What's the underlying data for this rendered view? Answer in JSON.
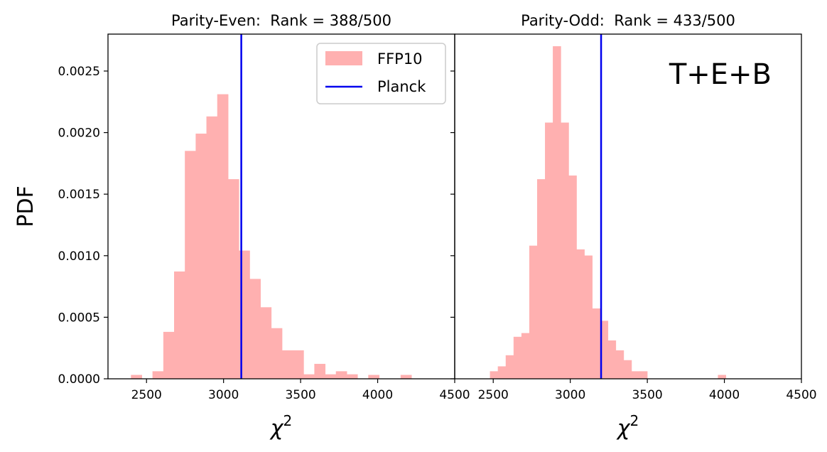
{
  "chart_data": [
    {
      "type": "bar",
      "subtype": "histogram",
      "title": "Parity-Even:  Rank = 388/500",
      "xlabel": "χ",
      "xlabel_sup": "2",
      "ylabel": "PDF",
      "xlim": [
        2250,
        4500
      ],
      "ylim": [
        0,
        0.0028
      ],
      "xticks": [
        2500,
        3000,
        3500,
        4000,
        4500
      ],
      "xtick_labels": [
        "2500",
        "3000",
        "3500",
        "4000",
        "4500"
      ],
      "yticks": [
        0,
        0.0005,
        0.001,
        0.0015,
        0.002,
        0.0025
      ],
      "ytick_labels": [
        "0.0000",
        "0.0005",
        "0.0010",
        "0.0015",
        "0.0020",
        "0.0025"
      ],
      "series": [
        {
          "name": "FFP10",
          "color": "#ffb0b0",
          "bin_start": 2400,
          "bin_width": 70,
          "values": [
            3e-05,
            0,
            6e-05,
            0.00038,
            0.00087,
            0.00185,
            0.00199,
            0.00213,
            0.00231,
            0.00162,
            0.00104,
            0.00081,
            0.00058,
            0.00041,
            0.00023,
            0.00023,
            3.5e-05,
            0.00012,
            3.5e-05,
            6e-05,
            3.5e-05,
            0,
            3e-05,
            0,
            0,
            3e-05
          ]
        }
      ],
      "vlines": [
        {
          "name": "Planck",
          "x": 3115,
          "color": "#0000ee"
        }
      ],
      "legend": {
        "position": "top-right",
        "entries": [
          "FFP10",
          "Planck"
        ]
      }
    },
    {
      "type": "bar",
      "subtype": "histogram",
      "title": "Parity-Odd:  Rank = 433/500",
      "xlabel": "χ",
      "xlabel_sup": "2",
      "xlim": [
        2250,
        4500
      ],
      "ylim": [
        0,
        0.0028
      ],
      "xticks": [
        2500,
        3000,
        3500,
        4000,
        4500
      ],
      "xtick_labels": [
        "2500",
        "3000",
        "3500",
        "4000",
        "4500"
      ],
      "annotation": {
        "text": "T+E+B",
        "color": "#008000",
        "position": "top-right"
      },
      "series": [
        {
          "name": "FFP10",
          "color": "#ffb0b0",
          "bin_start": 2480,
          "bin_width": 51,
          "values": [
            6e-05,
            0.0001,
            0.00019,
            0.00034,
            0.00037,
            0.00108,
            0.00162,
            0.00208,
            0.0027,
            0.00208,
            0.00165,
            0.00105,
            0.001,
            0.00057,
            0.00047,
            0.00031,
            0.00023,
            0.00015,
            6e-05,
            6e-05,
            0,
            0,
            0,
            0,
            0,
            0,
            0,
            0,
            0,
            3e-05
          ]
        }
      ],
      "vlines": [
        {
          "name": "Planck",
          "x": 3200,
          "color": "#0000ee"
        }
      ]
    }
  ]
}
